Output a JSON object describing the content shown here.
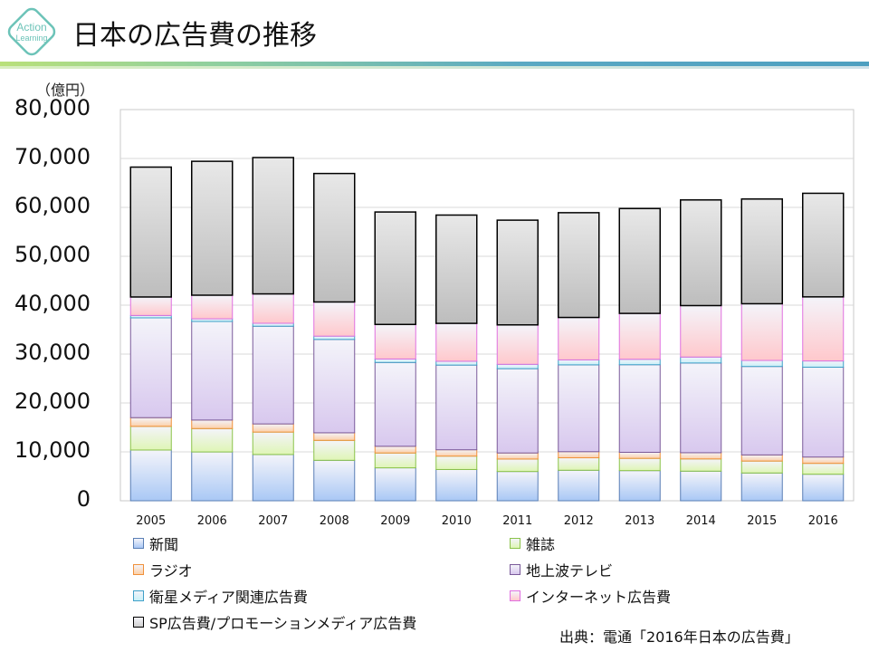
{
  "header": {
    "title": "日本の広告費の推移",
    "logo_text": [
      "Action",
      "Learning"
    ]
  },
  "source": "出典：電通「2016年日本の広告費」",
  "chart_data": {
    "type": "bar",
    "stacked": true,
    "ylabel": "（億円）",
    "ylim": [
      0,
      80000
    ],
    "yticks": [
      "0",
      "10,000",
      "20,000",
      "30,000",
      "40,000",
      "50,000",
      "60,000",
      "70,000",
      "80,000"
    ],
    "grid": true,
    "legend_placement": "bottom",
    "categories": [
      "2005",
      "2006",
      "2007",
      "2008",
      "2009",
      "2010",
      "2011",
      "2012",
      "2013",
      "2014",
      "2015",
      "2016"
    ],
    "series": [
      {
        "name": "新聞",
        "color": "#a9c8f5",
        "border": "#5a7fb5",
        "values": [
          10377,
          9986,
          9462,
          8276,
          6739,
          6396,
          5990,
          6242,
          6170,
          6057,
          5679,
          5431
        ]
      },
      {
        "name": "雑誌",
        "color": "#dff5b5",
        "border": "#8bc34a",
        "values": [
          4842,
          4777,
          4585,
          4078,
          3034,
          2733,
          2542,
          2551,
          2499,
          2500,
          2443,
          2223
        ]
      },
      {
        "name": "ラジオ",
        "color": "#fcd0a8",
        "border": "#f0903a",
        "values": [
          1778,
          1744,
          1671,
          1549,
          1370,
          1299,
          1247,
          1246,
          1243,
          1272,
          1254,
          1285
        ]
      },
      {
        "name": "地上波テレビ",
        "color": "#d8c8ee",
        "border": "#7a5a9a",
        "values": [
          20411,
          20161,
          19981,
          19092,
          17139,
          17321,
          17237,
          17757,
          17913,
          18347,
          18088,
          18374
        ]
      },
      {
        "name": "衛星メディア関連広告費",
        "color": "#c8f0f8",
        "border": "#40a0c8",
        "values": [
          487,
          544,
          603,
          676,
          709,
          784,
          891,
          1013,
          1110,
          1217,
          1235,
          1283
        ]
      },
      {
        "name": "インターネット広告費",
        "color": "#ffc8cc",
        "border": "#e070e0",
        "values": [
          3777,
          4826,
          6003,
          6983,
          7069,
          7747,
          8062,
          8680,
          9381,
          10519,
          11594,
          13100
        ]
      },
      {
        "name": "SP広告費/プロモーションメディア広告費",
        "color": "#d0d0d0",
        "border": "#000000",
        "values": [
          26563,
          27383,
          27886,
          26272,
          22996,
          22147,
          21417,
          21424,
          21446,
          21610,
          21417,
          21184
        ]
      }
    ]
  }
}
